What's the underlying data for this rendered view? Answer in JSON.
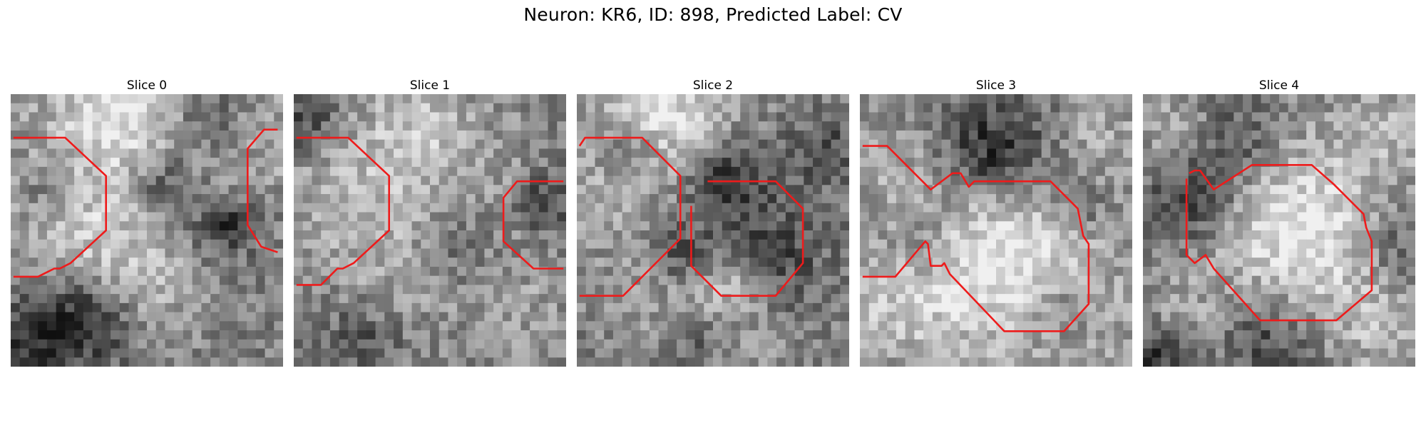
{
  "figure": {
    "title": "Neuron: KR6, ID: 898, Predicted Label: CV"
  },
  "panels": [
    {
      "title": "Slice 0",
      "seed": 11,
      "blobs": [
        [
          0.42,
          0.05,
          0.22,
          0.9
        ],
        [
          0.3,
          0.45,
          0.14,
          0.35
        ],
        [
          0.35,
          0.65,
          0.14,
          0.4
        ],
        [
          0.55,
          0.72,
          0.15,
          0.3
        ],
        [
          0.9,
          0.15,
          0.18,
          0.4
        ],
        [
          0.05,
          0.4,
          0.15,
          0.25
        ]
      ],
      "darks": [
        [
          0.72,
          0.1,
          0.12,
          0.6
        ],
        [
          0.55,
          0.33,
          0.08,
          0.5
        ],
        [
          0.15,
          0.35,
          0.08,
          0.4
        ],
        [
          0.28,
          0.82,
          0.12,
          0.7
        ],
        [
          0.08,
          0.9,
          0.1,
          0.5
        ],
        [
          0.78,
          0.48,
          0.08,
          0.6
        ]
      ],
      "contours": [
        [
          [
            0.01,
            0.16
          ],
          [
            0.2,
            0.16
          ],
          [
            0.35,
            0.3
          ],
          [
            0.35,
            0.5
          ],
          [
            0.22,
            0.62
          ],
          [
            0.18,
            0.64
          ],
          [
            0.16,
            0.64
          ],
          [
            0.1,
            0.67
          ],
          [
            0.01,
            0.67
          ]
        ],
        [
          [
            0.98,
            0.13
          ],
          [
            0.93,
            0.13
          ],
          [
            0.87,
            0.2
          ],
          [
            0.87,
            0.48
          ],
          [
            0.92,
            0.56
          ],
          [
            0.98,
            0.58
          ]
        ]
      ]
    },
    {
      "title": "Slice 1",
      "seed": 23,
      "blobs": [
        [
          0.2,
          0.35,
          0.2,
          0.45
        ],
        [
          0.45,
          0.1,
          0.15,
          0.45
        ],
        [
          0.7,
          0.35,
          0.2,
          0.25
        ],
        [
          0.4,
          0.65,
          0.18,
          0.25
        ],
        [
          0.85,
          0.8,
          0.15,
          0.25
        ]
      ],
      "darks": [
        [
          0.05,
          0.1,
          0.1,
          0.45
        ],
        [
          0.6,
          0.55,
          0.1,
          0.35
        ],
        [
          0.92,
          0.4,
          0.08,
          0.5
        ],
        [
          0.25,
          0.9,
          0.1,
          0.35
        ]
      ],
      "contours": [
        [
          [
            0.01,
            0.16
          ],
          [
            0.2,
            0.16
          ],
          [
            0.35,
            0.3
          ],
          [
            0.35,
            0.5
          ],
          [
            0.22,
            0.62
          ],
          [
            0.18,
            0.64
          ],
          [
            0.16,
            0.64
          ],
          [
            0.1,
            0.7
          ],
          [
            0.01,
            0.7
          ]
        ],
        [
          [
            0.99,
            0.32
          ],
          [
            0.82,
            0.32
          ],
          [
            0.77,
            0.38
          ],
          [
            0.77,
            0.54
          ],
          [
            0.88,
            0.64
          ],
          [
            0.99,
            0.64
          ]
        ]
      ]
    },
    {
      "title": "Slice 2",
      "seed": 37,
      "blobs": [
        [
          0.3,
          0.06,
          0.18,
          0.9
        ],
        [
          0.05,
          0.4,
          0.12,
          0.3
        ],
        [
          0.55,
          0.7,
          0.1,
          0.6
        ],
        [
          0.28,
          0.75,
          0.15,
          0.3
        ],
        [
          0.55,
          0.92,
          0.15,
          0.3
        ]
      ],
      "darks": [
        [
          0.55,
          0.32,
          0.1,
          0.6
        ],
        [
          0.4,
          0.6,
          0.08,
          0.45
        ],
        [
          0.7,
          0.6,
          0.14,
          0.45
        ],
        [
          0.2,
          0.2,
          0.08,
          0.4
        ],
        [
          0.45,
          0.9,
          0.1,
          0.45
        ],
        [
          0.92,
          0.2,
          0.1,
          0.35
        ]
      ],
      "contours": [
        [
          [
            0.01,
            0.19
          ],
          [
            0.03,
            0.16
          ],
          [
            0.24,
            0.16
          ],
          [
            0.38,
            0.3
          ],
          [
            0.38,
            0.53
          ],
          [
            0.17,
            0.74
          ],
          [
            0.01,
            0.74
          ]
        ],
        [
          [
            0.48,
            0.32
          ],
          [
            0.73,
            0.32
          ],
          [
            0.83,
            0.42
          ],
          [
            0.83,
            0.62
          ],
          [
            0.73,
            0.74
          ],
          [
            0.53,
            0.74
          ],
          [
            0.42,
            0.63
          ],
          [
            0.42,
            0.41
          ]
        ]
      ]
    },
    {
      "title": "Slice 3",
      "seed": 51,
      "blobs": [
        [
          0.52,
          0.6,
          0.26,
          1.0
        ],
        [
          0.1,
          0.78,
          0.15,
          0.4
        ],
        [
          0.1,
          0.25,
          0.12,
          0.3
        ],
        [
          0.9,
          0.15,
          0.12,
          0.3
        ],
        [
          0.85,
          0.85,
          0.12,
          0.3
        ]
      ],
      "darks": [
        [
          0.5,
          0.22,
          0.14,
          0.8
        ],
        [
          0.25,
          0.55,
          0.1,
          0.3
        ],
        [
          0.75,
          0.8,
          0.1,
          0.45
        ],
        [
          0.8,
          0.4,
          0.08,
          0.4
        ]
      ],
      "contours": [
        [
          [
            0.01,
            0.19
          ],
          [
            0.1,
            0.19
          ],
          [
            0.26,
            0.35
          ],
          [
            0.34,
            0.29
          ],
          [
            0.37,
            0.29
          ],
          [
            0.4,
            0.34
          ],
          [
            0.42,
            0.32
          ],
          [
            0.7,
            0.32
          ],
          [
            0.8,
            0.42
          ],
          [
            0.82,
            0.52
          ],
          [
            0.84,
            0.55
          ],
          [
            0.84,
            0.77
          ],
          [
            0.75,
            0.87
          ],
          [
            0.53,
            0.87
          ],
          [
            0.33,
            0.66
          ],
          [
            0.31,
            0.62
          ],
          [
            0.3,
            0.63
          ],
          [
            0.26,
            0.63
          ],
          [
            0.25,
            0.55
          ],
          [
            0.24,
            0.54
          ],
          [
            0.13,
            0.67
          ],
          [
            0.01,
            0.67
          ]
        ]
      ]
    },
    {
      "title": "Slice 4",
      "seed": 67,
      "blobs": [
        [
          0.58,
          0.52,
          0.25,
          1.0
        ],
        [
          0.1,
          0.1,
          0.12,
          0.35
        ],
        [
          0.9,
          0.1,
          0.12,
          0.35
        ],
        [
          0.15,
          0.85,
          0.12,
          0.3
        ],
        [
          0.88,
          0.88,
          0.12,
          0.3
        ]
      ],
      "darks": [
        [
          0.18,
          0.4,
          0.12,
          0.55
        ],
        [
          0.45,
          0.88,
          0.14,
          0.55
        ],
        [
          0.92,
          0.55,
          0.1,
          0.45
        ],
        [
          0.35,
          0.18,
          0.12,
          0.45
        ],
        [
          0.05,
          0.95,
          0.08,
          0.6
        ]
      ],
      "contours": [
        [
          [
            0.17,
            0.29
          ],
          [
            0.19,
            0.28
          ],
          [
            0.21,
            0.28
          ],
          [
            0.26,
            0.35
          ],
          [
            0.4,
            0.26
          ],
          [
            0.62,
            0.26
          ],
          [
            0.7,
            0.33
          ],
          [
            0.81,
            0.44
          ],
          [
            0.82,
            0.49
          ],
          [
            0.84,
            0.54
          ],
          [
            0.84,
            0.72
          ],
          [
            0.71,
            0.83
          ],
          [
            0.43,
            0.83
          ],
          [
            0.26,
            0.64
          ],
          [
            0.23,
            0.59
          ],
          [
            0.19,
            0.62
          ],
          [
            0.16,
            0.59
          ],
          [
            0.16,
            0.31
          ]
        ]
      ]
    }
  ],
  "style": {
    "contour_color": "#ee1b1b"
  }
}
